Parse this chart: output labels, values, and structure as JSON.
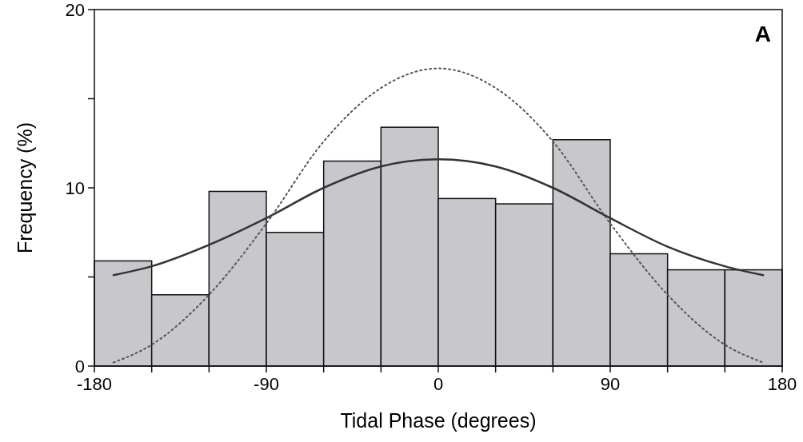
{
  "chart_data": {
    "type": "histogram",
    "xlabel": "Tidal Phase (degrees)",
    "ylabel": "Frequency (%)",
    "bins": [
      -180,
      -150,
      -120,
      -90,
      -60,
      -30,
      0,
      30,
      60,
      90,
      120,
      150,
      180
    ],
    "values": [
      5.9,
      4.0,
      9.8,
      7.5,
      11.5,
      13.4,
      9.4,
      9.1,
      12.7,
      6.3,
      5.4,
      5.4
    ],
    "color": "#c8c8cc",
    "series": [
      {
        "type": "line",
        "x": [
          -170,
          -150,
          -120,
          -90,
          -60,
          -30,
          0,
          30,
          60,
          90,
          120,
          150,
          170
        ],
        "values": [
          5.1,
          5.6,
          6.8,
          8.3,
          10.0,
          11.2,
          11.6,
          11.2,
          10.0,
          8.3,
          6.7,
          5.6,
          5.1
        ],
        "color": "#333333",
        "line_style": "solid"
      },
      {
        "type": "line",
        "x": [
          -170,
          -150,
          -120,
          -90,
          -60,
          -30,
          0,
          30,
          60,
          90,
          120,
          150,
          170
        ],
        "values": [
          0.2,
          1.2,
          4.0,
          8.0,
          12.6,
          15.6,
          16.7,
          15.6,
          12.6,
          8.0,
          4.0,
          1.2,
          0.2
        ],
        "color": "#555555",
        "line_style": "dotted"
      }
    ],
    "xlim": [
      -180,
      180
    ],
    "xticks": [
      -180,
      {
        "value": -150,
        "label": null
      },
      {
        "value": -120,
        "label": null
      },
      -90,
      {
        "value": -60,
        "label": null
      },
      {
        "value": -30,
        "label": null
      },
      0,
      {
        "value": 30,
        "label": null
      },
      {
        "value": 60,
        "label": null
      },
      90,
      {
        "value": 120,
        "label": null
      },
      {
        "value": 150,
        "label": null
      },
      180
    ],
    "ylim": [
      0,
      20
    ],
    "yticks": [
      0,
      {
        "value": 5,
        "label": null
      },
      10,
      {
        "value": 15,
        "label": null
      },
      20
    ],
    "grid": false,
    "annotations": [
      "A"
    ]
  }
}
